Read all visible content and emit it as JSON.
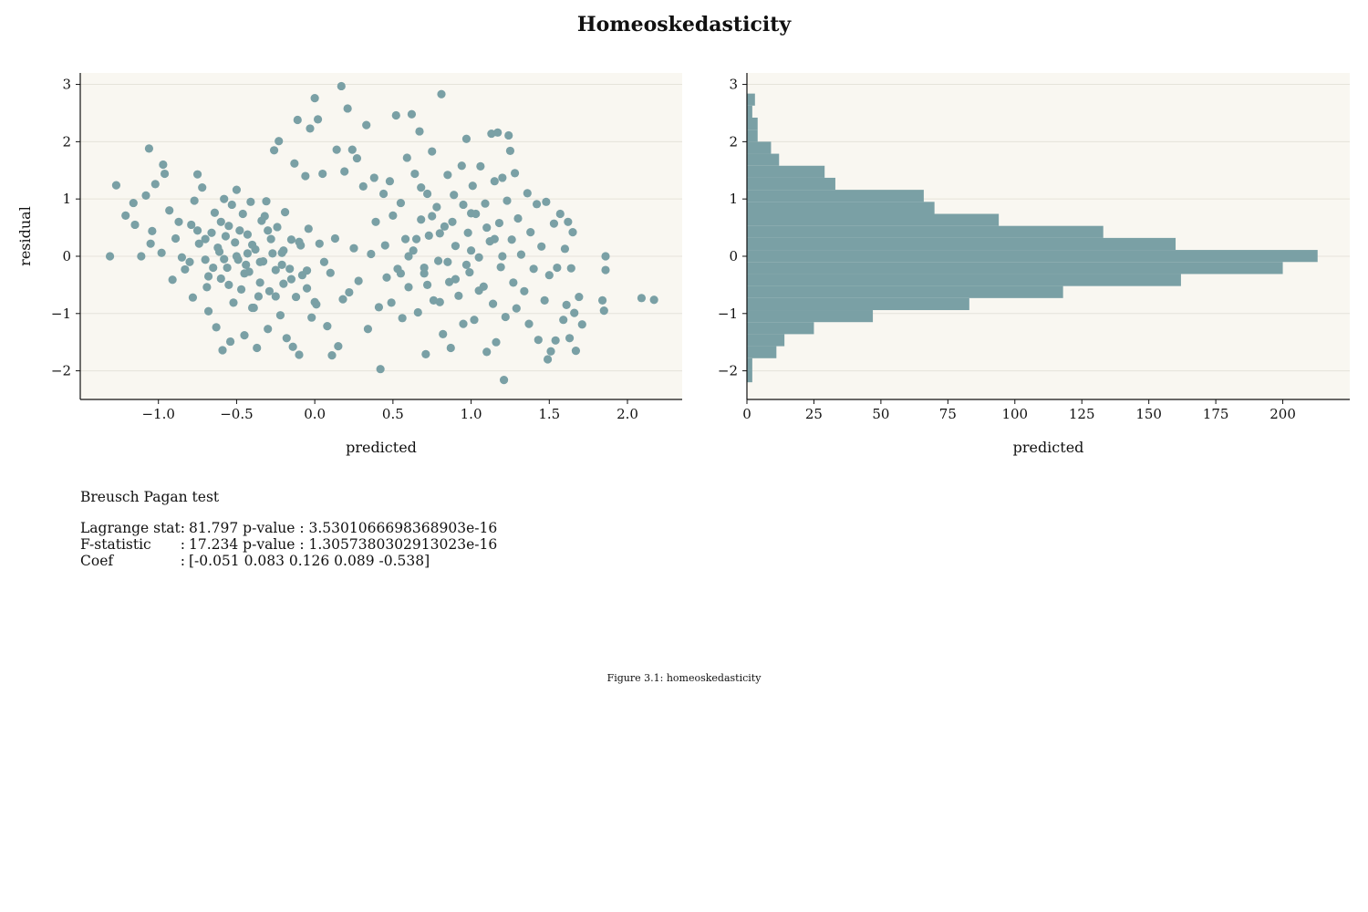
{
  "title": "Homeoskedasticity",
  "colors": {
    "marker": "#7aa0a5",
    "plot_background": "#f9f7f1",
    "grid": "#e6e3da"
  },
  "chart_data": [
    {
      "type": "scatter",
      "xlabel": "predicted",
      "ylabel": "residual",
      "xlim": [
        -1.5,
        2.35
      ],
      "ylim": [
        -2.5,
        3.2
      ],
      "xticks": [
        -1.0,
        -0.5,
        0.0,
        0.5,
        1.0,
        1.5,
        2.0
      ],
      "xtick_labels": [
        "−1.0",
        "−0.5",
        "0.0",
        "0.5",
        "1.0",
        "1.5",
        "2.0"
      ],
      "yticks": [
        3,
        2,
        1,
        0,
        -1,
        -2
      ],
      "ytick_labels": [
        "3",
        "2",
        "1",
        "0",
        "−1",
        "−2"
      ],
      "grid": "horizontal",
      "points": [
        [
          -1.31,
          0.0
        ],
        [
          -1.27,
          1.24
        ],
        [
          -1.21,
          0.71
        ],
        [
          -1.16,
          0.93
        ],
        [
          -1.15,
          0.55
        ],
        [
          -1.11,
          0.0
        ],
        [
          -1.08,
          1.06
        ],
        [
          -1.06,
          1.88
        ],
        [
          -1.05,
          0.22
        ],
        [
          -1.04,
          0.44
        ],
        [
          -1.02,
          1.26
        ],
        [
          -0.98,
          0.06
        ],
        [
          -0.97,
          1.6
        ],
        [
          -0.96,
          1.44
        ],
        [
          -0.93,
          0.8
        ],
        [
          -0.91,
          -0.41
        ],
        [
          -0.89,
          0.31
        ],
        [
          -0.87,
          0.6
        ],
        [
          -0.85,
          -0.02
        ],
        [
          -0.83,
          -0.23
        ],
        [
          -0.79,
          0.55
        ],
        [
          -0.78,
          -0.72
        ],
        [
          -0.77,
          0.97
        ],
        [
          -0.75,
          1.43
        ],
        [
          -0.74,
          0.22
        ],
        [
          -0.72,
          1.2
        ],
        [
          -0.7,
          -0.06
        ],
        [
          -0.69,
          -0.54
        ],
        [
          -0.68,
          -0.96
        ],
        [
          -0.66,
          0.41
        ],
        [
          -0.64,
          0.76
        ],
        [
          -0.63,
          -1.24
        ],
        [
          -0.61,
          0.08
        ],
        [
          -0.6,
          -0.39
        ],
        [
          -0.59,
          -1.64
        ],
        [
          -0.58,
          1.0
        ],
        [
          -0.56,
          -0.2
        ],
        [
          -0.55,
          0.53
        ],
        [
          -0.54,
          -1.49
        ],
        [
          -0.52,
          -0.81
        ],
        [
          -0.51,
          0.24
        ],
        [
          -0.5,
          1.16
        ],
        [
          -0.49,
          -0.06
        ],
        [
          -0.47,
          -0.58
        ],
        [
          -0.46,
          0.74
        ],
        [
          -0.45,
          -1.38
        ],
        [
          -0.43,
          0.38
        ],
        [
          -0.42,
          -0.27
        ],
        [
          -0.41,
          0.95
        ],
        [
          -0.39,
          -0.9
        ],
        [
          -0.38,
          0.12
        ],
        [
          -0.37,
          -1.6
        ],
        [
          -0.35,
          -0.46
        ],
        [
          -0.34,
          0.62
        ],
        [
          -0.33,
          -0.09
        ],
        [
          -0.31,
          0.96
        ],
        [
          -0.3,
          -1.27
        ],
        [
          -0.29,
          -0.61
        ],
        [
          -0.28,
          0.3
        ],
        [
          -0.26,
          1.85
        ],
        [
          -0.25,
          -0.24
        ],
        [
          -0.24,
          0.51
        ],
        [
          -0.23,
          2.01
        ],
        [
          -0.22,
          -1.03
        ],
        [
          -0.21,
          0.06
        ],
        [
          -0.2,
          -0.48
        ],
        [
          -0.19,
          0.77
        ],
        [
          -0.18,
          -1.43
        ],
        [
          -0.16,
          -0.22
        ],
        [
          -0.15,
          0.29
        ],
        [
          -0.14,
          -1.58
        ],
        [
          -0.13,
          1.62
        ],
        [
          -0.12,
          -0.71
        ],
        [
          -0.11,
          2.38
        ],
        [
          -0.1,
          -1.72
        ],
        [
          -0.09,
          0.19
        ],
        [
          -0.08,
          -0.33
        ],
        [
          -0.06,
          1.4
        ],
        [
          -0.05,
          -0.56
        ],
        [
          -0.04,
          0.48
        ],
        [
          -0.03,
          2.23
        ],
        [
          -0.02,
          -1.07
        ],
        [
          0.0,
          2.76
        ],
        [
          0.01,
          -0.84
        ],
        [
          0.02,
          2.39
        ],
        [
          0.03,
          0.22
        ],
        [
          0.05,
          1.44
        ],
        [
          0.06,
          -0.1
        ],
        [
          0.08,
          -1.22
        ],
        [
          0.1,
          -0.29
        ],
        [
          0.11,
          -1.73
        ],
        [
          0.13,
          0.31
        ],
        [
          0.14,
          1.86
        ],
        [
          0.15,
          -1.57
        ],
        [
          0.17,
          2.97
        ],
        [
          0.18,
          -0.75
        ],
        [
          0.19,
          1.48
        ],
        [
          0.21,
          2.58
        ],
        [
          0.22,
          -0.63
        ],
        [
          0.24,
          1.86
        ],
        [
          0.25,
          0.14
        ],
        [
          0.27,
          1.71
        ],
        [
          0.28,
          -0.43
        ],
        [
          0.31,
          1.22
        ],
        [
          0.33,
          2.29
        ],
        [
          0.34,
          -1.27
        ],
        [
          0.36,
          0.04
        ],
        [
          0.38,
          1.37
        ],
        [
          0.39,
          0.6
        ],
        [
          0.41,
          -0.89
        ],
        [
          0.42,
          -1.97
        ],
        [
          0.44,
          1.09
        ],
        [
          0.45,
          0.19
        ],
        [
          0.46,
          -0.37
        ],
        [
          0.48,
          1.31
        ],
        [
          0.49,
          -0.81
        ],
        [
          0.5,
          0.71
        ],
        [
          0.52,
          2.46
        ],
        [
          0.53,
          -0.22
        ],
        [
          0.55,
          0.93
        ],
        [
          0.56,
          -1.08
        ],
        [
          0.58,
          0.3
        ],
        [
          0.59,
          1.72
        ],
        [
          0.6,
          -0.54
        ],
        [
          0.62,
          2.48
        ],
        [
          0.63,
          0.1
        ],
        [
          0.64,
          1.44
        ],
        [
          0.66,
          -0.98
        ],
        [
          0.67,
          2.18
        ],
        [
          0.68,
          0.64
        ],
        [
          0.7,
          -0.3
        ],
        [
          0.71,
          -1.71
        ],
        [
          0.72,
          1.09
        ],
        [
          0.73,
          0.36
        ],
        [
          0.75,
          1.83
        ],
        [
          0.76,
          -0.77
        ],
        [
          0.78,
          0.86
        ],
        [
          0.79,
          -0.08
        ],
        [
          0.81,
          2.83
        ],
        [
          0.82,
          -1.36
        ],
        [
          0.83,
          0.52
        ],
        [
          0.85,
          1.42
        ],
        [
          0.86,
          -0.45
        ],
        [
          0.87,
          -1.6
        ],
        [
          0.89,
          1.07
        ],
        [
          0.9,
          0.18
        ],
        [
          0.92,
          -0.69
        ],
        [
          0.94,
          1.58
        ],
        [
          0.95,
          -1.18
        ],
        [
          0.97,
          2.05
        ],
        [
          0.98,
          0.41
        ],
        [
          0.99,
          -0.28
        ],
        [
          1.01,
          1.23
        ],
        [
          1.02,
          -1.11
        ],
        [
          1.03,
          0.74
        ],
        [
          1.05,
          -0.02
        ],
        [
          1.06,
          1.57
        ],
        [
          1.08,
          -0.53
        ],
        [
          1.09,
          0.92
        ],
        [
          1.1,
          -1.67
        ],
        [
          1.12,
          0.26
        ],
        [
          1.13,
          2.14
        ],
        [
          1.14,
          -0.83
        ],
        [
          1.15,
          1.31
        ],
        [
          1.16,
          -1.5
        ],
        [
          1.17,
          2.16
        ],
        [
          1.18,
          0.58
        ],
        [
          1.19,
          -0.19
        ],
        [
          1.2,
          1.37
        ],
        [
          1.21,
          -2.16
        ],
        [
          1.22,
          -1.06
        ],
        [
          1.23,
          0.97
        ],
        [
          1.24,
          2.11
        ],
        [
          1.25,
          1.84
        ],
        [
          1.26,
          0.29
        ],
        [
          1.27,
          -0.46
        ],
        [
          1.28,
          1.45
        ],
        [
          1.29,
          -0.91
        ],
        [
          1.3,
          0.66
        ],
        [
          1.32,
          0.03
        ],
        [
          1.34,
          -0.61
        ],
        [
          1.36,
          1.1
        ],
        [
          1.37,
          -1.18
        ],
        [
          1.38,
          0.42
        ],
        [
          1.4,
          -0.22
        ],
        [
          1.42,
          0.91
        ],
        [
          1.43,
          -1.46
        ],
        [
          1.45,
          0.17
        ],
        [
          1.47,
          -0.77
        ],
        [
          1.48,
          0.95
        ],
        [
          1.49,
          -1.8
        ],
        [
          1.5,
          -0.33
        ],
        [
          1.51,
          -1.66
        ],
        [
          1.53,
          0.57
        ],
        [
          1.54,
          -1.47
        ],
        [
          1.55,
          -0.2
        ],
        [
          1.57,
          0.74
        ],
        [
          1.59,
          -1.11
        ],
        [
          1.6,
          0.13
        ],
        [
          1.61,
          -0.85
        ],
        [
          1.62,
          0.6
        ],
        [
          1.63,
          -1.43
        ],
        [
          1.64,
          -0.21
        ],
        [
          1.65,
          0.42
        ],
        [
          1.66,
          -0.99
        ],
        [
          1.67,
          -1.65
        ],
        [
          1.69,
          -0.71
        ],
        [
          1.71,
          -1.19
        ],
        [
          1.84,
          -0.77
        ],
        [
          1.85,
          -0.95
        ],
        [
          1.86,
          0.0
        ],
        [
          1.86,
          -0.24
        ],
        [
          2.09,
          -0.73
        ],
        [
          2.17,
          -0.76
        ],
        [
          -0.7,
          0.3
        ],
        [
          -0.65,
          -0.2
        ],
        [
          -0.6,
          0.6
        ],
        [
          -0.55,
          -0.5
        ],
        [
          -0.5,
          0.0
        ],
        [
          -0.45,
          -0.3
        ],
        [
          -0.4,
          0.2
        ],
        [
          -0.35,
          -0.1
        ],
        [
          -0.3,
          0.45
        ],
        [
          -0.25,
          -0.7
        ],
        [
          -0.2,
          0.1
        ],
        [
          -0.15,
          -0.4
        ],
        [
          -0.1,
          0.25
        ],
        [
          -0.05,
          -0.25
        ],
        [
          0.0,
          -0.8
        ],
        [
          -0.62,
          0.15
        ],
        [
          -0.48,
          0.45
        ],
        [
          -0.36,
          -0.7
        ],
        [
          -0.27,
          0.05
        ],
        [
          -0.58,
          -0.05
        ],
        [
          -0.44,
          -0.15
        ],
        [
          -0.32,
          0.7
        ],
        [
          -0.68,
          -0.35
        ],
        [
          -0.53,
          0.9
        ],
        [
          -0.4,
          -0.9
        ],
        [
          -0.57,
          0.35
        ],
        [
          -0.43,
          0.05
        ],
        [
          -0.21,
          -0.15
        ],
        [
          -0.75,
          0.45
        ],
        [
          -0.8,
          -0.1
        ],
        [
          0.6,
          0.0
        ],
        [
          0.7,
          -0.2
        ],
        [
          0.8,
          0.4
        ],
        [
          0.9,
          -0.4
        ],
        [
          1.0,
          0.1
        ],
        [
          1.1,
          0.5
        ],
        [
          0.75,
          0.7
        ],
        [
          0.85,
          -0.1
        ],
        [
          0.95,
          0.9
        ],
        [
          1.05,
          -0.6
        ],
        [
          0.65,
          0.3
        ],
        [
          1.15,
          0.3
        ],
        [
          0.55,
          -0.3
        ],
        [
          0.72,
          -0.5
        ],
        [
          0.88,
          0.6
        ],
        [
          0.97,
          -0.15
        ],
        [
          1.2,
          0.0
        ],
        [
          0.68,
          1.2
        ],
        [
          0.8,
          -0.8
        ],
        [
          1.0,
          0.75
        ]
      ]
    },
    {
      "type": "bar",
      "orientation": "horizontal",
      "xlabel": "predicted",
      "xlim": [
        0,
        225
      ],
      "ylim": [
        -2.5,
        3.2
      ],
      "xticks": [
        0,
        25,
        50,
        75,
        100,
        125,
        150,
        175,
        200
      ],
      "xtick_labels": [
        "0",
        "25",
        "50",
        "75",
        "100",
        "125",
        "150",
        "175",
        "200"
      ],
      "yticks": [
        3,
        2,
        1,
        0,
        -1,
        -2
      ],
      "ytick_labels": [
        "3",
        "2",
        "1",
        "0",
        "−1",
        "−2"
      ],
      "grid": "horizontal",
      "bin_width": 0.21,
      "bin_edges_start": -2.2,
      "counts": [
        2,
        2,
        11,
        14,
        25,
        47,
        83,
        118,
        162,
        200,
        213,
        160,
        133,
        94,
        70,
        66,
        33,
        29,
        12,
        9,
        4,
        4,
        2,
        3
      ]
    }
  ],
  "stats": {
    "heading": "Breusch Pagan test",
    "rows": [
      {
        "name": "Lagrange stat",
        "sep": ":",
        "value": "81.797 p-value : 3.5301066698368903e-16"
      },
      {
        "name": "F-statistic",
        "sep": ":",
        "value": "17.234 p-value : 1.3057380302913023e-16"
      },
      {
        "name": "Coef",
        "sep": ":",
        "value": "[-0.051 0.083 0.126 0.089 -0.538]"
      }
    ]
  },
  "caption": "Figure 3.1: homeoskedasticity"
}
